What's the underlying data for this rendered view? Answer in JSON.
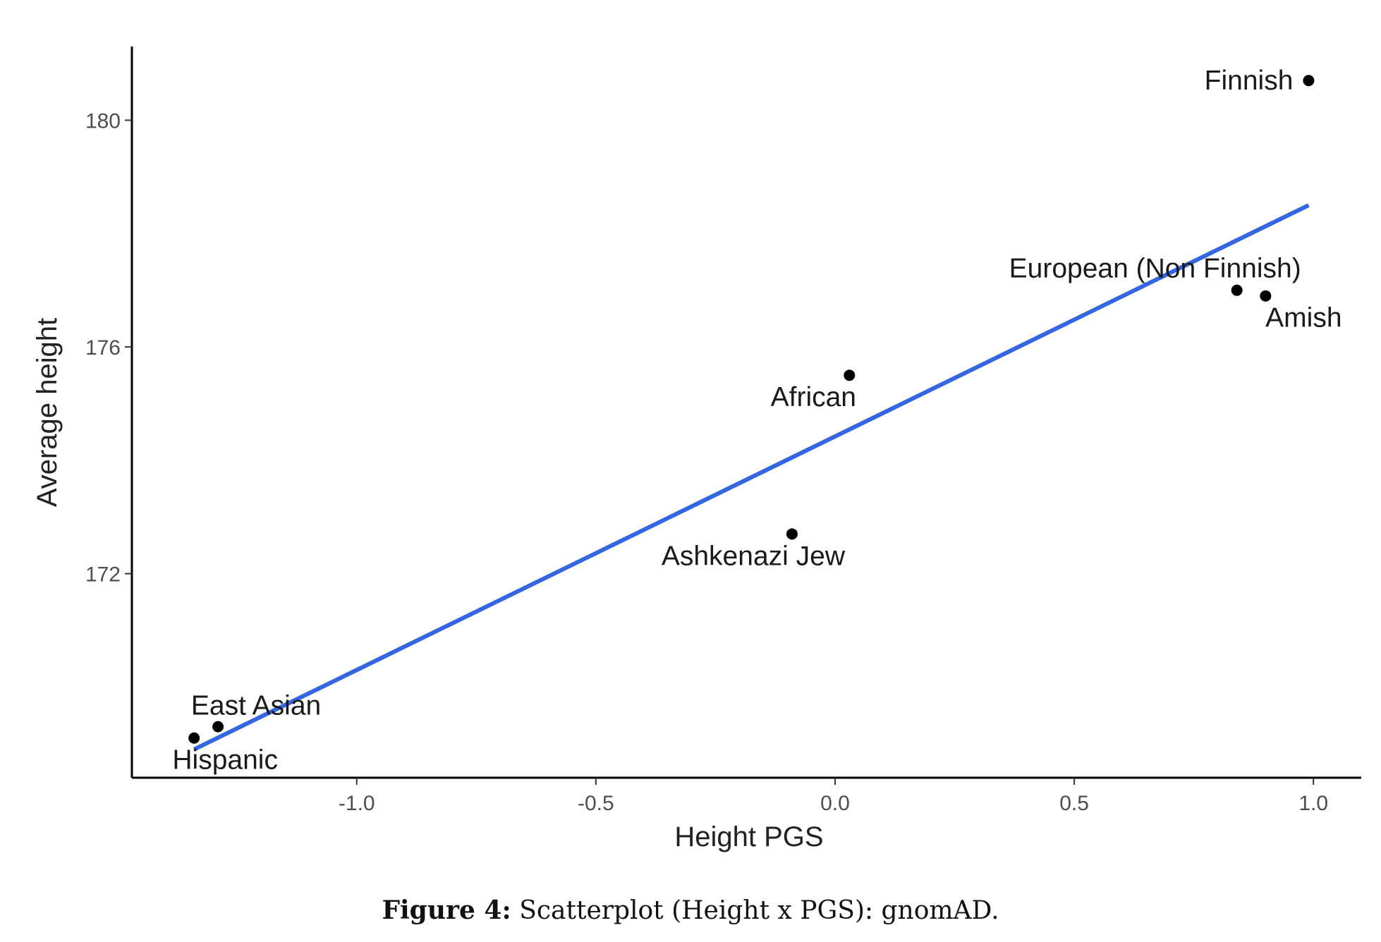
{
  "chart_data": {
    "type": "scatter",
    "xlabel": "Height PGS",
    "ylabel": "Average height",
    "xlim": [
      -1.47,
      1.1
    ],
    "ylim": [
      168.4,
      181.3
    ],
    "x_ticks": [
      -1.0,
      -0.5,
      0.0,
      0.5,
      1.0
    ],
    "x_tick_labels": [
      "-1.0",
      "-0.5",
      "0.0",
      "0.5",
      "1.0"
    ],
    "y_ticks": [
      172,
      176,
      180
    ],
    "y_tick_labels": [
      "172",
      "176",
      "180"
    ],
    "grid": false,
    "points": [
      {
        "label": "Finnish",
        "x": 0.99,
        "y": 180.7
      },
      {
        "label": "European (Non Finnish)",
        "x": 0.84,
        "y": 177.0
      },
      {
        "label": "Amish",
        "x": 0.9,
        "y": 176.9
      },
      {
        "label": "African",
        "x": 0.03,
        "y": 175.5
      },
      {
        "label": "Ashkenazi Jew",
        "x": -0.09,
        "y": 172.7
      },
      {
        "label": "East Asian",
        "x": -1.29,
        "y": 169.3
      },
      {
        "label": "Hispanic",
        "x": -1.34,
        "y": 169.1
      }
    ],
    "fit_line": {
      "x": [
        -1.34,
        0.99
      ],
      "y": [
        168.9,
        178.5
      ],
      "color": "#3366e0"
    },
    "point_color": "#000000"
  },
  "caption": {
    "label": "Figure 4:",
    "text": "Scatterplot (Height x PGS): gnomAD."
  }
}
